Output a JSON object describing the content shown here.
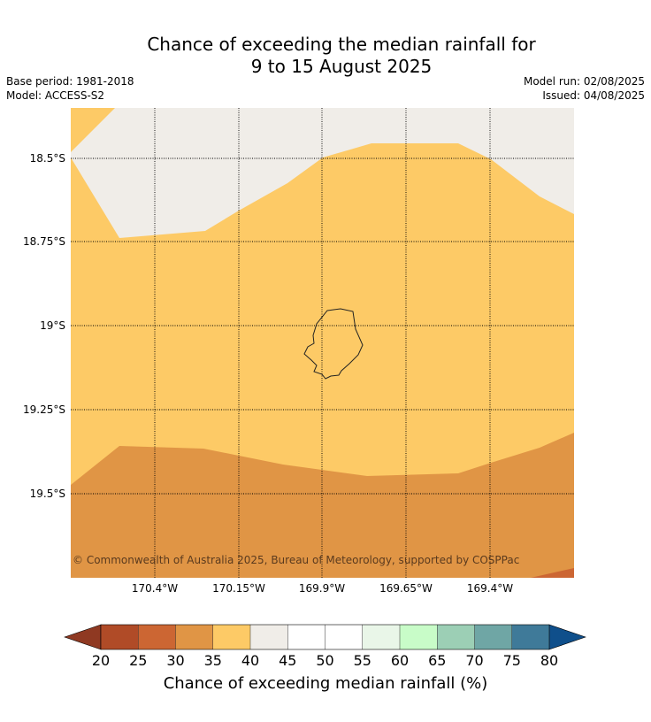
{
  "title_line1": "Chance of exceeding the median rainfall for",
  "title_line2": "9 to 15 August 2025",
  "meta_left": [
    "Base period: 1981-2018",
    "Model: ACCESS-S2"
  ],
  "meta_right": [
    "Model run: 02/08/2025",
    "Issued: 04/08/2025"
  ],
  "copyright": "© Commonwealth of Australia 2025, Bureau of Meteorology, supported by COSPPac",
  "lat_ticks": [
    "18.5°S",
    "18.75°S",
    "19°S",
    "19.25°S",
    "19.5°S"
  ],
  "lon_ticks": [
    "170.4°W",
    "170.15°W",
    "169.9°W",
    "169.65°W",
    "169.4°W"
  ],
  "colorbar": {
    "title": "Chance of exceeding median rainfall (%)",
    "ticks": [
      "20",
      "25",
      "30",
      "35",
      "40",
      "45",
      "50",
      "55",
      "60",
      "65",
      "70",
      "75",
      "80"
    ],
    "low_extend_color": "#8f3922",
    "high_extend_color": "#0f4f8b",
    "colors": [
      "#b04b27",
      "#cc6633",
      "#e09545",
      "#fdca66",
      "#f0ede8",
      "#ffffff",
      "#ffffff",
      "#e9f6e8",
      "#c8fcc8",
      "#9ccfb5",
      "#6fa6a5",
      "#3f7a99"
    ]
  },
  "map_colors": {
    "band_30_35": "#e09545",
    "band_35_40": "#fdca66",
    "band_40_45": "#f0ede8",
    "band_25_30": "#cc6633"
  }
}
